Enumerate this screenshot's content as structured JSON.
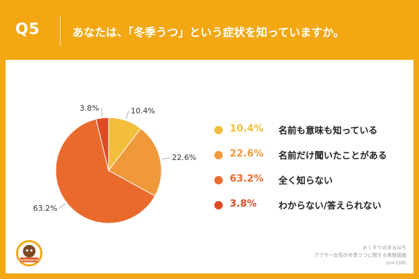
{
  "header": {
    "question_number": "Q5",
    "question_text": "あなたは、「冬季うつ」という症状を知っていますか。"
  },
  "chart_data": {
    "type": "pie",
    "title": "",
    "start_angle_deg": 0,
    "direction": "clockwise",
    "slices": [
      {
        "label": "名前も意味も知っている",
        "value": 10.4,
        "display": "10.4%",
        "color": "#F2BE3C"
      },
      {
        "label": "名前だけ聞いたことがある",
        "value": 22.6,
        "display": "22.6%",
        "color": "#F0993A"
      },
      {
        "label": "全く知らない",
        "value": 63.2,
        "display": "63.2%",
        "color": "#EA6A2E"
      },
      {
        "label": "わからない/答えられない",
        "value": 3.8,
        "display": "3.8%",
        "color": "#DF4A26"
      }
    ],
    "legend_position": "right"
  },
  "source": {
    "line1": "おくすりのまるはち",
    "line2": "アラサー女性の冬季うつに関する実態調査",
    "line3": "(n=106)"
  },
  "logo": {
    "icon": "pharmacy-mascot-logo-icon",
    "text": "MARUHACHI"
  }
}
